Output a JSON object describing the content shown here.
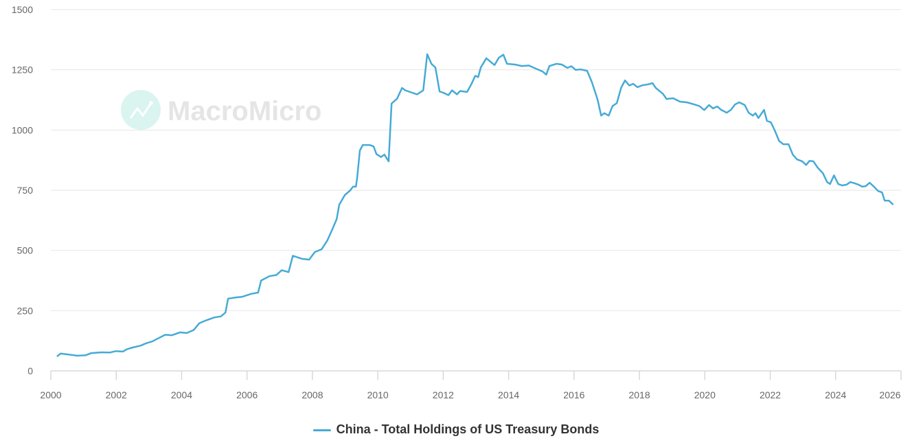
{
  "watermark": "MacroMicro",
  "chart_data": {
    "type": "line",
    "title": "",
    "xlabel": "",
    "ylabel": "",
    "xlim": [
      2000,
      2026
    ],
    "ylim": [
      0,
      1500
    ],
    "yticks": [
      "0",
      "250",
      "500",
      "750",
      "1000",
      "1250",
      "1500"
    ],
    "xticks": [
      "2000",
      "2002",
      "2004",
      "2006",
      "2008",
      "2010",
      "2012",
      "2014",
      "2016",
      "2018",
      "2020",
      "2022",
      "2024",
      "2026"
    ],
    "grid": true,
    "legend_position": "bottom-center",
    "series": [
      {
        "name": "China - Total Holdings of US Treasury Bonds",
        "color": "#45aad6",
        "points": [
          [
            2000.19,
            60
          ],
          [
            2000.3,
            72
          ],
          [
            2000.55,
            68
          ],
          [
            2000.8,
            63
          ],
          [
            2001.07,
            65
          ],
          [
            2001.24,
            74
          ],
          [
            2001.55,
            77
          ],
          [
            2001.8,
            76
          ],
          [
            2002.0,
            82
          ],
          [
            2002.2,
            80
          ],
          [
            2002.33,
            90
          ],
          [
            2002.5,
            97
          ],
          [
            2002.75,
            105
          ],
          [
            2002.92,
            115
          ],
          [
            2003.1,
            122
          ],
          [
            2003.28,
            135
          ],
          [
            2003.5,
            150
          ],
          [
            2003.7,
            148
          ],
          [
            2003.95,
            160
          ],
          [
            2004.16,
            157
          ],
          [
            2004.37,
            170
          ],
          [
            2004.54,
            198
          ],
          [
            2004.75,
            210
          ],
          [
            2005.0,
            222
          ],
          [
            2005.2,
            226
          ],
          [
            2005.34,
            242
          ],
          [
            2005.42,
            300
          ],
          [
            2005.67,
            305
          ],
          [
            2005.84,
            307
          ],
          [
            2006.13,
            320
          ],
          [
            2006.34,
            325
          ],
          [
            2006.43,
            375
          ],
          [
            2006.68,
            393
          ],
          [
            2006.9,
            398
          ],
          [
            2007.06,
            418
          ],
          [
            2007.27,
            410
          ],
          [
            2007.4,
            478
          ],
          [
            2007.69,
            465
          ],
          [
            2007.9,
            462
          ],
          [
            2008.07,
            493
          ],
          [
            2008.28,
            505
          ],
          [
            2008.45,
            540
          ],
          [
            2008.6,
            585
          ],
          [
            2008.74,
            630
          ],
          [
            2008.82,
            690
          ],
          [
            2008.99,
            730
          ],
          [
            2009.16,
            750
          ],
          [
            2009.24,
            765
          ],
          [
            2009.33,
            765
          ],
          [
            2009.37,
            805
          ],
          [
            2009.45,
            915
          ],
          [
            2009.54,
            938
          ],
          [
            2009.75,
            938
          ],
          [
            2009.87,
            932
          ],
          [
            2009.96,
            900
          ],
          [
            2010.1,
            888
          ],
          [
            2010.2,
            898
          ],
          [
            2010.33,
            870
          ],
          [
            2010.42,
            1110
          ],
          [
            2010.59,
            1130
          ],
          [
            2010.74,
            1175
          ],
          [
            2010.84,
            1165
          ],
          [
            2011.05,
            1155
          ],
          [
            2011.2,
            1148
          ],
          [
            2011.39,
            1165
          ],
          [
            2011.51,
            1315
          ],
          [
            2011.64,
            1275
          ],
          [
            2011.76,
            1260
          ],
          [
            2011.89,
            1160
          ],
          [
            2012.0,
            1155
          ],
          [
            2012.16,
            1145
          ],
          [
            2012.27,
            1165
          ],
          [
            2012.42,
            1148
          ],
          [
            2012.52,
            1162
          ],
          [
            2012.73,
            1158
          ],
          [
            2012.86,
            1190
          ],
          [
            2012.98,
            1225
          ],
          [
            2013.07,
            1220
          ],
          [
            2013.15,
            1260
          ],
          [
            2013.32,
            1298
          ],
          [
            2013.45,
            1283
          ],
          [
            2013.57,
            1270
          ],
          [
            2013.7,
            1300
          ],
          [
            2013.84,
            1313
          ],
          [
            2013.95,
            1275
          ],
          [
            2014.2,
            1272
          ],
          [
            2014.4,
            1266
          ],
          [
            2014.62,
            1268
          ],
          [
            2014.83,
            1255
          ],
          [
            2015.04,
            1243
          ],
          [
            2015.15,
            1230
          ],
          [
            2015.25,
            1266
          ],
          [
            2015.46,
            1275
          ],
          [
            2015.63,
            1272
          ],
          [
            2015.8,
            1258
          ],
          [
            2015.92,
            1265
          ],
          [
            2016.05,
            1250
          ],
          [
            2016.2,
            1252
          ],
          [
            2016.4,
            1246
          ],
          [
            2016.55,
            1198
          ],
          [
            2016.72,
            1127
          ],
          [
            2016.83,
            1060
          ],
          [
            2016.93,
            1070
          ],
          [
            2017.06,
            1060
          ],
          [
            2017.18,
            1100
          ],
          [
            2017.31,
            1112
          ],
          [
            2017.44,
            1175
          ],
          [
            2017.56,
            1206
          ],
          [
            2017.69,
            1185
          ],
          [
            2017.81,
            1192
          ],
          [
            2017.94,
            1178
          ],
          [
            2018.1,
            1186
          ],
          [
            2018.28,
            1190
          ],
          [
            2018.4,
            1195
          ],
          [
            2018.5,
            1175
          ],
          [
            2018.72,
            1150
          ],
          [
            2018.83,
            1129
          ],
          [
            2019.03,
            1132
          ],
          [
            2019.24,
            1118
          ],
          [
            2019.45,
            1115
          ],
          [
            2019.66,
            1107
          ],
          [
            2019.83,
            1100
          ],
          [
            2019.98,
            1083
          ],
          [
            2020.13,
            1104
          ],
          [
            2020.25,
            1090
          ],
          [
            2020.38,
            1098
          ],
          [
            2020.5,
            1084
          ],
          [
            2020.67,
            1072
          ],
          [
            2020.8,
            1084
          ],
          [
            2020.92,
            1106
          ],
          [
            2021.05,
            1115
          ],
          [
            2021.22,
            1104
          ],
          [
            2021.34,
            1072
          ],
          [
            2021.47,
            1060
          ],
          [
            2021.55,
            1070
          ],
          [
            2021.64,
            1050
          ],
          [
            2021.81,
            1084
          ],
          [
            2021.9,
            1038
          ],
          [
            2022.02,
            1032
          ],
          [
            2022.14,
            998
          ],
          [
            2022.27,
            955
          ],
          [
            2022.4,
            941
          ],
          [
            2022.56,
            941
          ],
          [
            2022.69,
            898
          ],
          [
            2022.82,
            878
          ],
          [
            2022.98,
            870
          ],
          [
            2023.1,
            855
          ],
          [
            2023.2,
            872
          ],
          [
            2023.32,
            870
          ],
          [
            2023.45,
            844
          ],
          [
            2023.61,
            821
          ],
          [
            2023.74,
            784
          ],
          [
            2023.83,
            776
          ],
          [
            2023.95,
            812
          ],
          [
            2024.08,
            776
          ],
          [
            2024.2,
            770
          ],
          [
            2024.33,
            773
          ],
          [
            2024.45,
            784
          ],
          [
            2024.58,
            779
          ],
          [
            2024.7,
            773
          ],
          [
            2024.81,
            765
          ],
          [
            2024.92,
            767
          ],
          [
            2025.04,
            781
          ],
          [
            2025.17,
            765
          ],
          [
            2025.3,
            747
          ],
          [
            2025.42,
            741
          ],
          [
            2025.5,
            707
          ],
          [
            2025.63,
            707
          ],
          [
            2025.76,
            690
          ]
        ]
      }
    ]
  }
}
